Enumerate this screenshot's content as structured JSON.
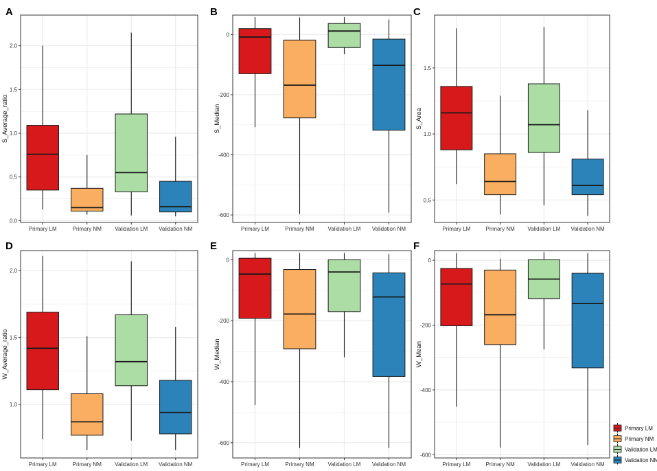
{
  "colors": {
    "primary_lm": "#d7191c",
    "primary_nm": "#f9ae61",
    "validation_lm": "#abdda4",
    "validation_nm": "#2b83ba",
    "grid": "#ebebeb",
    "frame": "#333333"
  },
  "legend": {
    "entries": [
      "Primary LM",
      "Primary NM",
      "Validation LM",
      "Validation NM"
    ]
  },
  "chart_data": [
    {
      "panel": "A",
      "type": "box",
      "ylabel": "S_Average_ratio",
      "ylim": [
        -0.02,
        2.35
      ],
      "yticks": [
        0.0,
        0.5,
        1.0,
        1.5,
        2.0
      ],
      "ytick_labels": [
        "0.0",
        "0.5",
        "1.0",
        "1.5",
        "2.0"
      ],
      "categories": [
        "Primary LM",
        "Primary NM",
        "Validation LM",
        "Validation NM"
      ],
      "boxes": [
        {
          "min": 0.13,
          "q1": 0.35,
          "median": 0.76,
          "q3": 1.09,
          "max": 2.0
        },
        {
          "min": 0.07,
          "q1": 0.11,
          "median": 0.15,
          "q3": 0.37,
          "max": 0.75
        },
        {
          "min": 0.06,
          "q1": 0.33,
          "median": 0.55,
          "q3": 1.22,
          "max": 2.15
        },
        {
          "min": 0.05,
          "q1": 0.1,
          "median": 0.16,
          "q3": 0.45,
          "max": 0.96
        }
      ]
    },
    {
      "panel": "B",
      "type": "box",
      "ylabel": "S_Median",
      "ylim": [
        -625,
        65
      ],
      "yticks": [
        -600,
        -400,
        -200,
        0
      ],
      "ytick_labels": [
        "-600",
        "-400",
        "-200",
        "0"
      ],
      "categories": [
        "Primary LM",
        "Primary NM",
        "Validation LM",
        "Validation NM"
      ],
      "boxes": [
        {
          "min": -308,
          "q1": -130,
          "median": -8,
          "q3": 20,
          "max": 58
        },
        {
          "min": -597,
          "q1": -277,
          "median": -168,
          "q3": -18,
          "max": 57
        },
        {
          "min": -65,
          "q1": -43,
          "median": 12,
          "q3": 37,
          "max": 58
        },
        {
          "min": -592,
          "q1": -318,
          "median": -102,
          "q3": -15,
          "max": 50
        }
      ]
    },
    {
      "panel": "C",
      "type": "box",
      "ylabel": "S_Area",
      "ylim": [
        0.33,
        1.9
      ],
      "yticks": [
        0.5,
        1.0,
        1.5
      ],
      "ytick_labels": [
        "0.5",
        "1.0",
        "1.5"
      ],
      "categories": [
        "Primary LM",
        "Primary NM",
        "Validation LM",
        "Validation NM"
      ],
      "boxes": [
        {
          "min": 0.62,
          "q1": 0.88,
          "median": 1.16,
          "q3": 1.36,
          "max": 1.8
        },
        {
          "min": 0.39,
          "q1": 0.54,
          "median": 0.64,
          "q3": 0.85,
          "max": 1.29
        },
        {
          "min": 0.46,
          "q1": 0.86,
          "median": 1.07,
          "q3": 1.38,
          "max": 1.81
        },
        {
          "min": 0.38,
          "q1": 0.54,
          "median": 0.61,
          "q3": 0.81,
          "max": 1.18
        }
      ]
    },
    {
      "panel": "D",
      "type": "box",
      "ylabel": "W_Average_ratio",
      "ylim": [
        0.6,
        2.15
      ],
      "yticks": [
        1.0,
        1.5,
        2.0
      ],
      "ytick_labels": [
        "1.0",
        "1.5",
        "2.0"
      ],
      "categories": [
        "Primary LM",
        "Primary NM",
        "Validation LM",
        "Validation NM"
      ],
      "boxes": [
        {
          "min": 0.74,
          "q1": 1.11,
          "median": 1.42,
          "q3": 1.69,
          "max": 2.11
        },
        {
          "min": 0.66,
          "q1": 0.77,
          "median": 0.87,
          "q3": 1.08,
          "max": 1.51
        },
        {
          "min": 0.73,
          "q1": 1.14,
          "median": 1.32,
          "q3": 1.67,
          "max": 2.07
        },
        {
          "min": 0.66,
          "q1": 0.78,
          "median": 0.94,
          "q3": 1.18,
          "max": 1.58
        }
      ]
    },
    {
      "panel": "E",
      "type": "box",
      "ylabel": "W_Median",
      "ylim": [
        -650,
        30
      ],
      "yticks": [
        -600,
        -400,
        -200,
        0
      ],
      "ytick_labels": [
        "-600",
        "-400",
        "-200",
        "0"
      ],
      "categories": [
        "Primary LM",
        "Primary NM",
        "Validation LM",
        "Validation NM"
      ],
      "boxes": [
        {
          "min": -477,
          "q1": -192,
          "median": -47,
          "q3": 5,
          "max": 22
        },
        {
          "min": -617,
          "q1": -292,
          "median": -178,
          "q3": -32,
          "max": 22
        },
        {
          "min": -320,
          "q1": -170,
          "median": -40,
          "q3": 0,
          "max": 22
        },
        {
          "min": -617,
          "q1": -383,
          "median": -122,
          "q3": -43,
          "max": 18
        }
      ]
    },
    {
      "panel": "F",
      "type": "box",
      "ylabel": "W_Mean",
      "ylim": [
        -610,
        30
      ],
      "yticks": [
        -600,
        -400,
        -200,
        0
      ],
      "ytick_labels": [
        "-600",
        "-400",
        "-200",
        "0"
      ],
      "categories": [
        "Primary LM",
        "Primary NM",
        "Validation LM",
        "Validation NM"
      ],
      "boxes": [
        {
          "min": -452,
          "q1": -202,
          "median": -73,
          "q3": -25,
          "max": 22
        },
        {
          "min": -578,
          "q1": -260,
          "median": -168,
          "q3": -30,
          "max": 5
        },
        {
          "min": -275,
          "q1": -118,
          "median": -58,
          "q3": 2,
          "max": 25
        },
        {
          "min": -570,
          "q1": -332,
          "median": -133,
          "q3": -40,
          "max": 22
        }
      ]
    }
  ]
}
